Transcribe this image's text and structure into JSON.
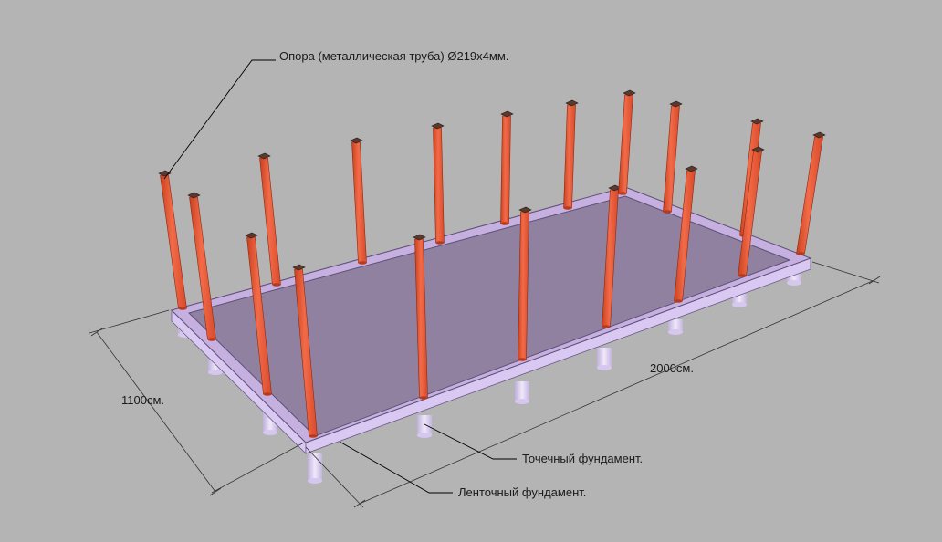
{
  "labels": {
    "support": "Опора (металлическая труба) Ø219x4мм.",
    "width_dim": "1100см.",
    "length_dim": "2000см.",
    "point_foundation": "Точечный фундамент.",
    "strip_foundation": "Ленточный фундамент."
  },
  "colors": {
    "background": "#b4b4b4",
    "slab_top": "#8f819f",
    "strip_top": "#c5b0e0",
    "strip_side": "#d9c8f2",
    "pile": "#ddd0f2",
    "column": "#ea5a3a",
    "leader_line": "#000000"
  }
}
